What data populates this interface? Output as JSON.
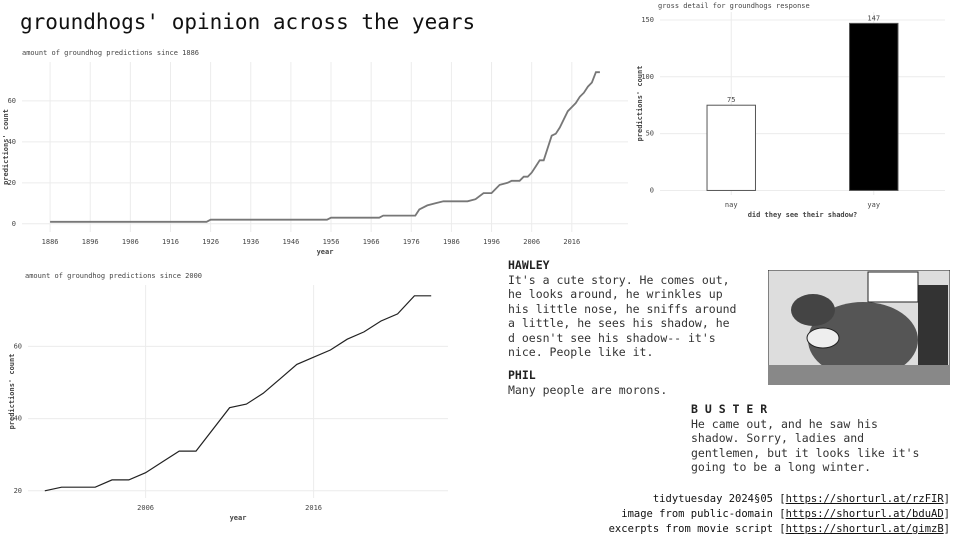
{
  "title": "groundhogs' opinion across the years",
  "chart_data": [
    {
      "type": "line",
      "title": "amount of groundhog predictions since 1886",
      "xlabel": "year",
      "ylabel": "predictions' count",
      "x": [
        1886,
        1925,
        1926,
        1955,
        1956,
        1968,
        1969,
        1977,
        1978,
        1980,
        1982,
        1984,
        1990,
        1992,
        1994,
        1996,
        1998,
        2000,
        2001,
        2003,
        2004,
        2005,
        2006,
        2007,
        2008,
        2009,
        2011,
        2012,
        2013,
        2014,
        2015,
        2016,
        2017,
        2018,
        2019,
        2020,
        2021,
        2022,
        2023
      ],
      "values": [
        1,
        1,
        2,
        2,
        3,
        3,
        4,
        4,
        7,
        9,
        10,
        11,
        11,
        12,
        15,
        15,
        19,
        20,
        21,
        21,
        23,
        23,
        25,
        28,
        31,
        31,
        43,
        44,
        47,
        51,
        55,
        57,
        59,
        62,
        64,
        67,
        69,
        74,
        74
      ],
      "color": "#777777",
      "xlim": [
        1879,
        2030
      ],
      "ylim": [
        -4,
        79
      ],
      "xticks": [
        1886,
        1896,
        1906,
        1916,
        1926,
        1936,
        1946,
        1956,
        1966,
        1976,
        1986,
        1996,
        2006,
        2016
      ],
      "yticks": [
        0,
        20,
        40,
        60
      ],
      "grid": true
    },
    {
      "type": "line",
      "title": "amount of groundhog predictions since 2000",
      "xlabel": "year",
      "ylabel": "predictions' count",
      "x": [
        2000,
        2001,
        2003,
        2004,
        2005,
        2006,
        2007,
        2008,
        2009,
        2011,
        2012,
        2013,
        2014,
        2015,
        2016,
        2017,
        2018,
        2019,
        2020,
        2021,
        2022,
        2023
      ],
      "values": [
        20,
        21,
        21,
        23,
        23,
        25,
        28,
        31,
        31,
        43,
        44,
        47,
        51,
        55,
        57,
        59,
        62,
        64,
        67,
        69,
        74,
        74
      ],
      "color": "#222222",
      "xlim": [
        1999,
        2024
      ],
      "ylim": [
        18,
        77
      ],
      "xticks": [
        2006,
        2016
      ],
      "yticks": [
        20,
        40,
        60
      ],
      "grid": true
    },
    {
      "type": "bar",
      "title": "gross detail for groundhogs response",
      "xlabel": "did they see their shadow?",
      "ylabel": "predictions' count",
      "categories": [
        "nay",
        "yay"
      ],
      "values": [
        75,
        147
      ],
      "colors": [
        "#ffffff",
        "#000000"
      ],
      "edgecolor": "#555555",
      "ylim": [
        -4,
        157
      ],
      "yticks": [
        0,
        50,
        100,
        150
      ],
      "grid": true
    }
  ],
  "script": [
    {
      "speaker": "HAWLEY",
      "lines": [
        "It's a cute story. He comes out,",
        "he looks around, he wrinkles up",
        "his little nose, he sniffs around",
        "a little, he sees his shadow, he",
        "d oesn't see his shadow-- it's",
        "nice. People like it."
      ]
    },
    {
      "speaker": "PHIL",
      "lines": [
        "Many people are morons."
      ]
    },
    {
      "speaker": "B U S T E R",
      "lines": [
        "He came out, and he saw his",
        "shadow. Sorry, ladies and",
        "gentlemen, but it looks like it's",
        "going to be a long winter."
      ]
    }
  ],
  "credits": [
    {
      "prefix": "tidytuesday 2024§05 [",
      "url": "https://shorturl.at/rzFIR",
      "suffix": "]"
    },
    {
      "prefix": "image from public-domain [",
      "url": "https://shorturl.at/bduAD",
      "suffix": "]"
    },
    {
      "prefix": "excerpts from movie script [",
      "url": "https://shorturl.at/gimzB",
      "suffix": "]"
    }
  ]
}
